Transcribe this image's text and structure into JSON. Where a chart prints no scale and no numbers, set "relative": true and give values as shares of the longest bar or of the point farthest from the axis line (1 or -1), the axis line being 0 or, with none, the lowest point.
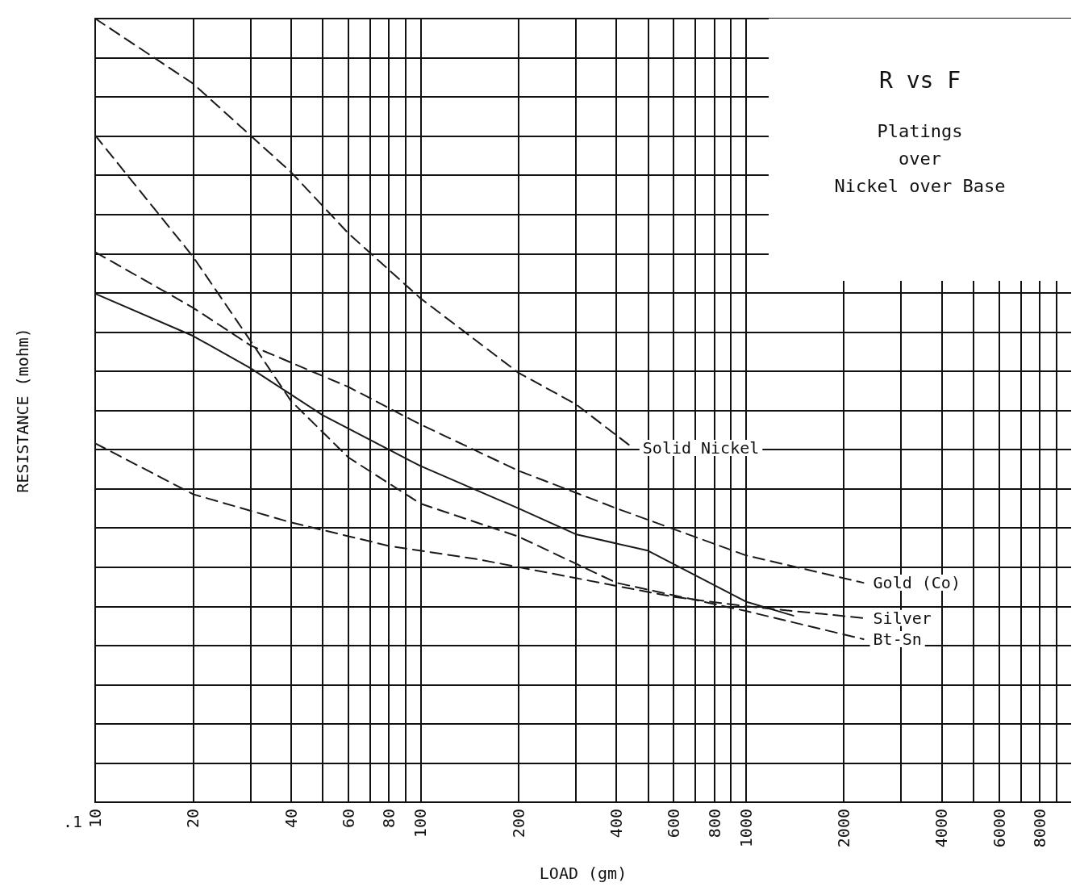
{
  "chart_data": {
    "type": "line",
    "title": "R vs F",
    "subtitle": "Platings\nover\nNickel over Base",
    "xlabel": "LOAD (gm)",
    "ylabel": "RESISTANCE (mohm)",
    "relative": true,
    "log": "x",
    "grid": true,
    "legend": false,
    "marker": "none",
    "xlim": [
      10,
      10000
    ],
    "xticks": [
      10,
      20,
      {
        "value": 30,
        "label": null
      },
      40,
      {
        "value": 50,
        "label": null
      },
      60,
      {
        "value": 70,
        "label": null
      },
      80,
      {
        "value": 90,
        "label": null
      },
      100,
      200,
      {
        "value": 300,
        "label": null
      },
      400,
      {
        "value": 500,
        "label": null
      },
      600,
      {
        "value": 700,
        "label": null
      },
      800,
      {
        "value": 900,
        "label": null
      },
      1000,
      2000,
      {
        "value": 3000,
        "label": null
      },
      4000,
      {
        "value": 5000,
        "label": null
      },
      6000,
      {
        "value": 7000,
        "label": null
      },
      8000,
      {
        "value": 9000,
        "label": null
      }
    ],
    "annotations": [
      ".1"
    ],
    "series": [
      {
        "name": "Solid Nickel",
        "color": "#1a1a1a",
        "line_style": "dashed",
        "x": [
          10,
          20,
          40,
          60,
          100,
          200,
          300,
          450
        ],
        "values": [
          1,
          0.917,
          0.804,
          0.726,
          0.643,
          0.548,
          0.508,
          0.452
        ]
      },
      {
        "name": "Gold (Co)",
        "color": "#1a1a1a",
        "line_style": "dashed",
        "x": [
          10,
          20,
          30,
          60,
          100,
          200,
          400,
          1000,
          2300
        ],
        "values": [
          0.702,
          0.631,
          0.583,
          0.53,
          0.482,
          0.423,
          0.375,
          0.315,
          0.28
        ]
      },
      {
        "color": "#1a1a1a",
        "line_style": "solid",
        "x": [
          10,
          20,
          30,
          50,
          100,
          200,
          300,
          500,
          1000,
          1400
        ],
        "values": [
          0.649,
          0.595,
          0.554,
          0.494,
          0.429,
          0.375,
          0.342,
          0.321,
          0.256,
          0.238
        ]
      },
      {
        "name": "Silver",
        "color": "#1a1a1a",
        "line_style": "dashed",
        "x": [
          10,
          20,
          40,
          80,
          150,
          300,
          600,
          1000,
          2300
        ],
        "values": [
          0.458,
          0.393,
          0.357,
          0.327,
          0.31,
          0.286,
          0.262,
          0.25,
          0.235
        ]
      },
      {
        "name": "Bt-Sn",
        "color": "#1a1a1a",
        "line_style": "dashed",
        "x": [
          10,
          20,
          30,
          40,
          60,
          100,
          200,
          400,
          1000,
          2300
        ],
        "values": [
          0.851,
          0.696,
          0.589,
          0.512,
          0.44,
          0.381,
          0.339,
          0.28,
          0.244,
          0.208
        ]
      }
    ]
  }
}
